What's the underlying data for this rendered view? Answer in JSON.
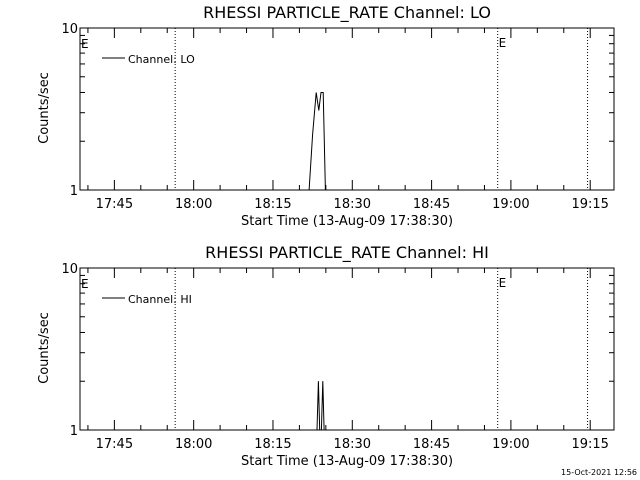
{
  "timestamp": "15-Oct-2021 12:56",
  "chart_data": [
    {
      "type": "line",
      "title": "RHESSI PARTICLE_RATE Channel: LO",
      "xlabel": "Start Time (13-Aug-09 17:38:30)",
      "ylabel": "Counts/sec",
      "y_scale": "log",
      "ylim": [
        1,
        10
      ],
      "y_ticks": [
        "1",
        "10"
      ],
      "xlim": [
        "17:38:30",
        "19:19:30"
      ],
      "x_ticks": [
        "17:45",
        "18:00",
        "18:15",
        "18:30",
        "18:45",
        "19:00",
        "19:15"
      ],
      "legend": {
        "placement": "top-left",
        "entries": [
          "Channel: LO"
        ]
      },
      "series": [
        {
          "name": "Channel: LO",
          "x": [
            "18:21:50",
            "18:22:30",
            "18:23:10",
            "18:23:40",
            "18:24:05",
            "18:24:30",
            "18:24:55",
            "18:25:15",
            "18:25:35"
          ],
          "y": [
            1,
            2.2,
            4.0,
            3.1,
            4.0,
            4.0,
            1,
            1,
            1
          ]
        }
      ],
      "vertical_markers": [
        {
          "x": "17:56:30",
          "label": ""
        },
        {
          "x": "18:57:30",
          "label": "E"
        },
        {
          "x": "19:14:30",
          "label": ""
        }
      ],
      "left_marker_label": "E",
      "grid": false
    },
    {
      "type": "line",
      "title": "RHESSI PARTICLE_RATE Channel: HI",
      "xlabel": "Start Time (13-Aug-09 17:38:30)",
      "ylabel": "Counts/sec",
      "y_scale": "log",
      "ylim": [
        1,
        10
      ],
      "y_ticks": [
        "1",
        "10"
      ],
      "xlim": [
        "17:38:30",
        "19:19:30"
      ],
      "x_ticks": [
        "17:45",
        "18:00",
        "18:15",
        "18:30",
        "18:45",
        "19:00",
        "19:15"
      ],
      "legend": {
        "placement": "top-left",
        "entries": [
          "Channel: HI"
        ]
      },
      "series": [
        {
          "name": "Channel: HI",
          "x": [
            "18:23:20",
            "18:23:35",
            "18:23:50",
            "18:24:10",
            "18:24:25",
            "18:24:40"
          ],
          "y": [
            1,
            2.0,
            1,
            1,
            2.0,
            1
          ]
        }
      ],
      "vertical_markers": [
        {
          "x": "17:56:30",
          "label": ""
        },
        {
          "x": "18:57:30",
          "label": "E"
        },
        {
          "x": "19:14:30",
          "label": ""
        }
      ],
      "left_marker_label": "E",
      "grid": false
    }
  ]
}
